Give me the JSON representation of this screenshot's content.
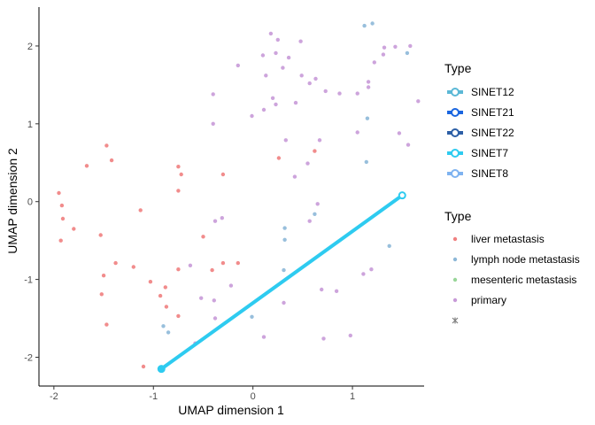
{
  "chart_data": {
    "type": "scatter",
    "xlabel": "UMAP dimension 1",
    "ylabel": "UMAP dimension 2",
    "xlim": [
      -2.15,
      1.72
    ],
    "ylim": [
      -2.37,
      2.5
    ],
    "x_ticks": [
      -2,
      -1,
      0,
      1
    ],
    "y_ticks": [
      -2,
      -1,
      0,
      1,
      2
    ],
    "x_tick_labels": [
      "-2",
      "-1",
      "0",
      "1"
    ],
    "y_tick_labels": [
      "-2",
      "-1",
      "0",
      "1",
      "2"
    ],
    "grid": false,
    "legend_placement": "right",
    "line_legend": {
      "title": "Type",
      "entries": [
        {
          "name": "SINET12",
          "color": "#5bb8d6"
        },
        {
          "name": "SINET21",
          "color": "#1a66e0"
        },
        {
          "name": "SINET22",
          "color": "#2d5fa6"
        },
        {
          "name": "SINET7",
          "color": "#2ecbf0"
        },
        {
          "name": "SINET8",
          "color": "#7fb3f0"
        }
      ]
    },
    "point_legend": {
      "title": "Type",
      "entries": [
        {
          "name": "liver metastasis",
          "color": "#f08080"
        },
        {
          "name": "lymph node metastasis",
          "color": "#8db8d8"
        },
        {
          "name": "mesenteric metastasis",
          "color": "#99d699"
        },
        {
          "name": "primary",
          "color": "#c89ad8"
        },
        {
          "name": "",
          "color": "#808080"
        }
      ]
    },
    "trajectory": {
      "series": "SINET7",
      "color": "#2ecbf0",
      "start": [
        -0.92,
        -2.15
      ],
      "end": [
        1.5,
        0.08
      ]
    },
    "series": [
      {
        "name": "liver metastasis",
        "color": "#f08080",
        "points": [
          [
            -1.95,
            0.11
          ],
          [
            -1.92,
            -0.05
          ],
          [
            -1.91,
            -0.22
          ],
          [
            -1.93,
            -0.5
          ],
          [
            -1.8,
            -0.35
          ],
          [
            -1.67,
            0.46
          ],
          [
            -1.53,
            -0.43
          ],
          [
            -1.47,
            0.72
          ],
          [
            -1.42,
            0.53
          ],
          [
            -1.5,
            -0.95
          ],
          [
            -1.52,
            -1.19
          ],
          [
            -1.47,
            -1.58
          ],
          [
            -1.38,
            -0.79
          ],
          [
            -1.2,
            -0.84
          ],
          [
            -1.13,
            -0.11
          ],
          [
            -1.03,
            -1.03
          ],
          [
            -0.93,
            -1.21
          ],
          [
            -0.88,
            -1.1
          ],
          [
            -0.75,
            0.45
          ],
          [
            -0.72,
            0.35
          ],
          [
            -0.75,
            0.14
          ],
          [
            -0.75,
            -0.87
          ],
          [
            -0.75,
            -1.47
          ],
          [
            -0.87,
            -1.35
          ],
          [
            -0.5,
            -0.45
          ],
          [
            -0.3,
            0.35
          ],
          [
            -0.3,
            -0.79
          ],
          [
            -0.15,
            -0.79
          ],
          [
            -0.41,
            -0.88
          ],
          [
            -1.1,
            -2.12
          ],
          [
            0.26,
            0.56
          ],
          [
            0.62,
            0.65
          ]
        ]
      },
      {
        "name": "lymph node metastasis",
        "color": "#8db8d8",
        "points": [
          [
            1.12,
            2.26
          ],
          [
            1.2,
            2.29
          ],
          [
            1.55,
            1.91
          ],
          [
            1.15,
            1.07
          ],
          [
            1.14,
            0.51
          ],
          [
            0.32,
            -0.34
          ],
          [
            0.32,
            -0.49
          ],
          [
            0.31,
            -0.88
          ],
          [
            0.62,
            -0.16
          ],
          [
            1.37,
            -0.57
          ],
          [
            -0.01,
            -1.48
          ],
          [
            -0.9,
            -1.6
          ],
          [
            -0.85,
            -1.68
          ]
        ]
      },
      {
        "name": "mesenteric metastasis",
        "color": "#99d699",
        "points": []
      },
      {
        "name": "primary",
        "color": "#c89ad8",
        "points": [
          [
            0.18,
            2.16
          ],
          [
            0.25,
            2.08
          ],
          [
            0.48,
            2.06
          ],
          [
            0.1,
            1.88
          ],
          [
            0.23,
            1.91
          ],
          [
            0.36,
            1.85
          ],
          [
            -0.15,
            1.75
          ],
          [
            0.13,
            1.62
          ],
          [
            0.3,
            1.72
          ],
          [
            0.49,
            1.62
          ],
          [
            0.63,
            1.58
          ],
          [
            0.57,
            1.52
          ],
          [
            0.2,
            1.33
          ],
          [
            0.23,
            1.25
          ],
          [
            0.11,
            1.18
          ],
          [
            -0.01,
            1.1
          ],
          [
            -0.4,
            1.38
          ],
          [
            -0.4,
            1.0
          ],
          [
            0.73,
            1.42
          ],
          [
            0.87,
            1.39
          ],
          [
            1.05,
            1.39
          ],
          [
            1.05,
            0.89
          ],
          [
            1.16,
            1.47
          ],
          [
            1.16,
            1.54
          ],
          [
            1.22,
            1.79
          ],
          [
            1.31,
            1.89
          ],
          [
            1.32,
            1.98
          ],
          [
            1.43,
            1.99
          ],
          [
            1.58,
            2.0
          ],
          [
            1.66,
            1.29
          ],
          [
            1.47,
            0.88
          ],
          [
            1.56,
            0.73
          ],
          [
            0.43,
            1.27
          ],
          [
            0.33,
            0.79
          ],
          [
            0.55,
            0.49
          ],
          [
            0.67,
            0.79
          ],
          [
            0.42,
            0.32
          ],
          [
            0.65,
            -0.03
          ],
          [
            0.57,
            -0.25
          ],
          [
            -0.31,
            -0.21
          ],
          [
            -0.38,
            -0.25
          ],
          [
            -0.63,
            -0.82
          ],
          [
            -0.52,
            -1.24
          ],
          [
            -0.39,
            -1.27
          ],
          [
            -0.22,
            -1.08
          ],
          [
            -0.38,
            -1.5
          ],
          [
            -0.58,
            -1.82
          ],
          [
            0.69,
            -1.13
          ],
          [
            0.84,
            -1.15
          ],
          [
            0.31,
            -1.3
          ],
          [
            0.11,
            -1.74
          ],
          [
            0.71,
            -1.76
          ],
          [
            0.98,
            -1.72
          ],
          [
            1.11,
            -0.93
          ],
          [
            1.19,
            -0.87
          ]
        ]
      }
    ]
  }
}
